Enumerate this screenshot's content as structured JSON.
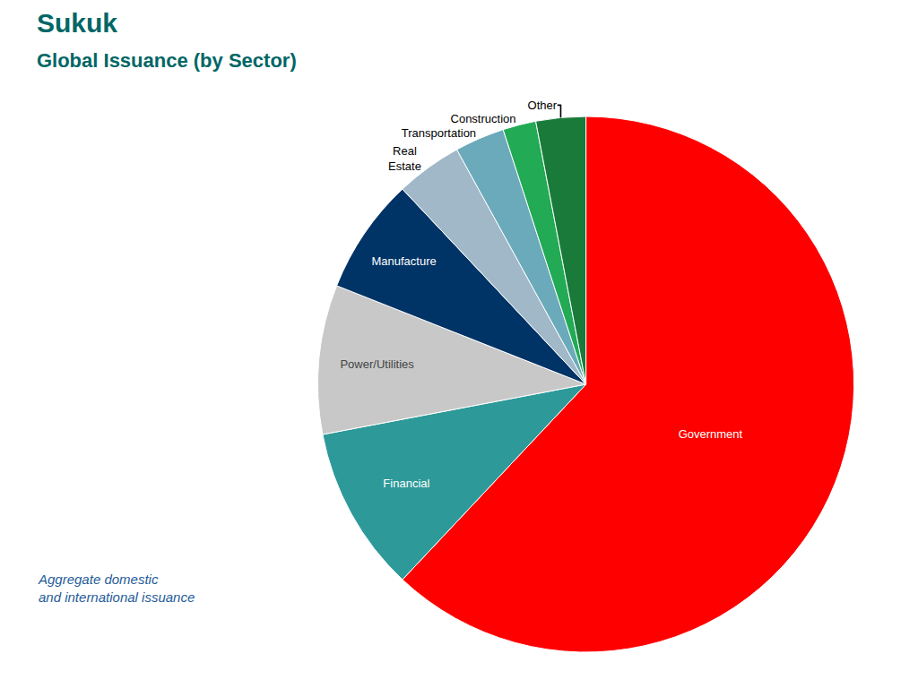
{
  "chart_data": {
    "type": "pie",
    "title": "Sukuk",
    "subtitle": "Global Issuance (by Sector)",
    "annotations": [
      "Aggregate domestic\nand international issuance"
    ],
    "categories": [
      "Government",
      "Financial",
      "Power/Utilities",
      "Manufacture",
      "Real\nEstate",
      "Transportation",
      "Construction",
      "Other"
    ],
    "values": [
      62,
      10,
      9,
      7,
      4,
      3,
      2,
      3
    ],
    "colors": [
      "#FF0000",
      "#2E9999",
      "#C8C8C8",
      "#003366",
      "#A0B8C8",
      "#6BAABB",
      "#22AA55",
      "#1A7A3A"
    ],
    "data_labels": false
  }
}
